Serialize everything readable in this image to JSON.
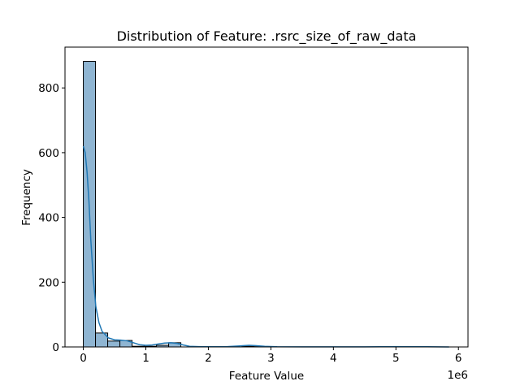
{
  "chart_data": {
    "type": "bar",
    "title": "Distribution of Feature: .rsrc_size_of_raw_data",
    "xlabel": "Feature Value",
    "ylabel": "Frequency",
    "x_offset_label": "1e6",
    "xlim": [
      -0.293,
      6.153
    ],
    "ylim": [
      0,
      926
    ],
    "x_ticks": [
      0,
      1,
      2,
      3,
      4,
      5,
      6
    ],
    "x_tick_labels": [
      "0",
      "1",
      "2",
      "3",
      "4",
      "5",
      "6"
    ],
    "y_ticks": [
      0,
      200,
      400,
      600,
      800
    ],
    "y_tick_labels": [
      "0",
      "200",
      "400",
      "600",
      "800"
    ],
    "bin_width": 0.195,
    "bin_start": 0,
    "bin_counts": [
      882,
      43,
      18,
      20,
      2,
      2,
      5,
      13,
      0,
      0,
      0,
      0,
      0,
      2,
      1,
      0,
      0,
      0,
      0,
      0,
      0,
      0,
      0,
      0,
      0,
      0,
      1,
      0,
      0,
      0
    ],
    "kde_points": [
      [
        0,
        620
      ],
      [
        0.03,
        600
      ],
      [
        0.06,
        540
      ],
      [
        0.09,
        450
      ],
      [
        0.12,
        330
      ],
      [
        0.16,
        210
      ],
      [
        0.2,
        125
      ],
      [
        0.25,
        75
      ],
      [
        0.3,
        48
      ],
      [
        0.4,
        28
      ],
      [
        0.5,
        22
      ],
      [
        0.6,
        21
      ],
      [
        0.7,
        19
      ],
      [
        0.8,
        13
      ],
      [
        0.9,
        7
      ],
      [
        1.0,
        5
      ],
      [
        1.1,
        6
      ],
      [
        1.2,
        9
      ],
      [
        1.3,
        12
      ],
      [
        1.4,
        13
      ],
      [
        1.5,
        11
      ],
      [
        1.6,
        6
      ],
      [
        1.7,
        2
      ],
      [
        1.85,
        1
      ],
      [
        2.0,
        0.5
      ],
      [
        2.3,
        1
      ],
      [
        2.5,
        3
      ],
      [
        2.65,
        5
      ],
      [
        2.75,
        4
      ],
      [
        2.9,
        2
      ],
      [
        3.1,
        0.5
      ],
      [
        3.5,
        0.2
      ],
      [
        4.5,
        0.3
      ],
      [
        5.0,
        1
      ],
      [
        5.5,
        0.5
      ],
      [
        5.85,
        0.1
      ]
    ],
    "colors": {
      "bar_fill": "#8fb5d2",
      "bar_edge": "#000000",
      "kde": "#1f77b4"
    }
  }
}
